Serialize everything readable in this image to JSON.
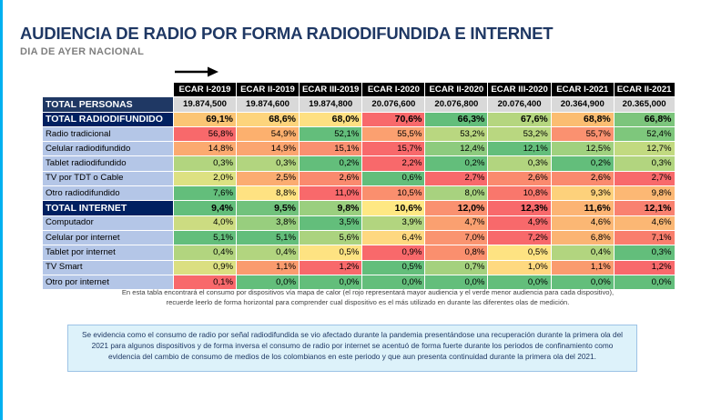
{
  "header": {
    "title": "AUDIENCIA DE RADIO POR FORMA RADIODIFUNDIDA E INTERNET",
    "subtitle": "DIA DE AYER NACIONAL"
  },
  "table": {
    "columns": [
      "ECAR I-2019",
      "ECAR II-2019",
      "ECAR III-2019",
      "ECAR I-2020",
      "ECAR II-2020",
      "ECAR III-2020",
      "ECAR I-2021",
      "ECAR II-2021"
    ],
    "rows": [
      {
        "label": "TOTAL PERSONAS",
        "type": "personas",
        "values": [
          "19.874,500",
          "19.874,600",
          "19.874,800",
          "20.076,600",
          "20.076,800",
          "20.076,400",
          "20.364,900",
          "20.365,000"
        ],
        "colors": [
          "#d9d9d9",
          "#d9d9d9",
          "#d9d9d9",
          "#d9d9d9",
          "#d9d9d9",
          "#d9d9d9",
          "#d9d9d9",
          "#d9d9d9"
        ]
      },
      {
        "label": "TOTAL RADIODIFUNDIDO",
        "type": "total",
        "values": [
          "69,1%",
          "68,6%",
          "68,0%",
          "70,6%",
          "66,3%",
          "67,6%",
          "68,8%",
          "66,8%"
        ],
        "colors": [
          "#fbc574",
          "#fdd47c",
          "#fee082",
          "#f8696b",
          "#63be7b",
          "#b5d67f",
          "#fbbd71",
          "#7cc57c"
        ]
      },
      {
        "label": "Radio tradicional",
        "type": "sub",
        "values": [
          "56,8%",
          "54,9%",
          "52,1%",
          "55,5%",
          "53,2%",
          "53,2%",
          "55,7%",
          "52,4%"
        ],
        "colors": [
          "#f8696b",
          "#fcb06e",
          "#63be7b",
          "#fba070",
          "#b9d780",
          "#b9d780",
          "#fa9170",
          "#7ec77c"
        ]
      },
      {
        "label": "Celular radiodifundido",
        "type": "sub",
        "values": [
          "14,8%",
          "14,9%",
          "15,1%",
          "15,7%",
          "12,4%",
          "12,1%",
          "12,5%",
          "12,7%"
        ],
        "colors": [
          "#fbaa70",
          "#fba570",
          "#fa9070",
          "#f8696b",
          "#8dcb7e",
          "#63be7b",
          "#a0d17f",
          "#c2da80"
        ]
      },
      {
        "label": "Tablet radiodifundido",
        "type": "sub",
        "values": [
          "0,3%",
          "0,3%",
          "0,2%",
          "2,2%",
          "0,2%",
          "0,3%",
          "0,2%",
          "0,3%"
        ],
        "colors": [
          "#b2d57f",
          "#b2d57f",
          "#63be7b",
          "#f8696b",
          "#63be7b",
          "#b2d57f",
          "#63be7b",
          "#b2d57f"
        ]
      },
      {
        "label": "TV por TDT o Cable",
        "type": "sub",
        "values": [
          "2,0%",
          "2,5%",
          "2,6%",
          "0,6%",
          "2,7%",
          "2,6%",
          "2,6%",
          "2,7%"
        ],
        "colors": [
          "#dde182",
          "#fbac71",
          "#fa8a6e",
          "#63be7b",
          "#f8696b",
          "#fa8a6e",
          "#fa8a6e",
          "#f8696b"
        ]
      },
      {
        "label": "Otro radiodifundido",
        "type": "sub",
        "values": [
          "7,6%",
          "8,8%",
          "11,0%",
          "10,5%",
          "8,0%",
          "10,8%",
          "9,3%",
          "9,8%"
        ],
        "colors": [
          "#63be7b",
          "#fee282",
          "#f8696b",
          "#fa8f6e",
          "#a8d27f",
          "#f9776c",
          "#fdd17b",
          "#fcb874"
        ]
      },
      {
        "label": "TOTAL INTERNET",
        "type": "total",
        "values": [
          "9,4%",
          "9,5%",
          "9,8%",
          "10,6%",
          "12,0%",
          "12,3%",
          "11,6%",
          "12,1%"
        ],
        "colors": [
          "#63be7b",
          "#71c27c",
          "#9acf7f",
          "#fee883",
          "#fa9170",
          "#f8696b",
          "#fcb474",
          "#f98170"
        ]
      },
      {
        "label": "Computador",
        "type": "sub",
        "values": [
          "4,0%",
          "3,8%",
          "3,5%",
          "3,9%",
          "4,7%",
          "4,9%",
          "4,6%",
          "4,6%"
        ],
        "colors": [
          "#ccdc81",
          "#98ce7e",
          "#63be7b",
          "#b2d57f",
          "#faa070",
          "#f8696b",
          "#fbb774",
          "#fbb774"
        ]
      },
      {
        "label": "Celular por internet",
        "type": "sub",
        "values": [
          "5,1%",
          "5,1%",
          "5,6%",
          "6,4%",
          "7,0%",
          "7,2%",
          "6,8%",
          "7,1%"
        ],
        "colors": [
          "#63be7b",
          "#63be7b",
          "#abd37f",
          "#fed880",
          "#fa9470",
          "#f8696b",
          "#fbb473",
          "#f97e6d"
        ]
      },
      {
        "label": "Tablet por internet",
        "type": "sub",
        "values": [
          "0,4%",
          "0,4%",
          "0,5%",
          "0,9%",
          "0,8%",
          "0,5%",
          "0,4%",
          "0,3%"
        ],
        "colors": [
          "#b2d57f",
          "#b2d57f",
          "#fee382",
          "#f8696b",
          "#fa8f6e",
          "#fee382",
          "#b2d57f",
          "#63be7b"
        ]
      },
      {
        "label": "TV Smart",
        "type": "sub",
        "values": [
          "0,9%",
          "1,1%",
          "1,2%",
          "0,5%",
          "0,7%",
          "1,0%",
          "1,1%",
          "1,2%"
        ],
        "colors": [
          "#dbdf81",
          "#fa9b6e",
          "#f8696b",
          "#63be7b",
          "#a4d17e",
          "#fed980",
          "#fa9b6e",
          "#f8696b"
        ]
      },
      {
        "label": "Otro por internet",
        "type": "sub",
        "values": [
          "0,1%",
          "0,0%",
          "0,0%",
          "0,0%",
          "0,0%",
          "0,0%",
          "0,0%",
          "0,0%"
        ],
        "colors": [
          "#f8696b",
          "#63be7b",
          "#63be7b",
          "#63be7b",
          "#63be7b",
          "#63be7b",
          "#63be7b",
          "#63be7b"
        ]
      }
    ]
  },
  "footnote": "En esta tabla encontrará el consumo por dispositivos vía mapa de calor (el rojo representará mayor audiencia y el verde menor audiencia para cada dispositivo), recuerde leerlo de forma horizontal para comprender cual dispositivo es el más utilizado en durante las diferentes olas de medición.",
  "note": "Se evidencia como el consumo de radio por señal radiodifundida se vio afectado durante la pandemia presentándose una recuperación durante la primera ola del 2021 para algunos dispositivos y de forma inversa el consumo de radio por internet se acentuó de forma fuerte durante los periodos de confinamiento como evidencia del cambio de consumo de medios de los colombianos en este periodo y que aun presenta continuidad durante la primera ola del 2021."
}
